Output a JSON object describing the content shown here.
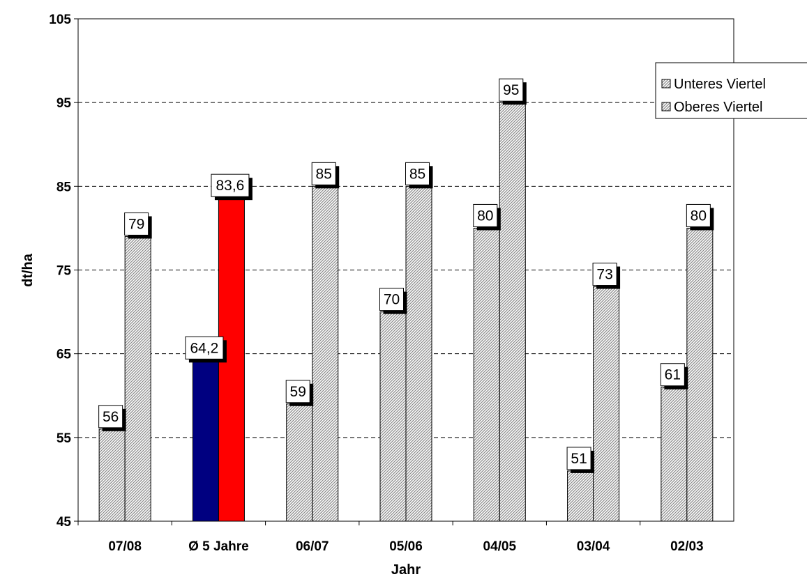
{
  "chart_data": {
    "type": "bar",
    "categories": [
      "07/08",
      "Ø 5 Jahre",
      "06/07",
      "05/06",
      "04/05",
      "03/04",
      "02/03"
    ],
    "series": [
      {
        "name": "Unteres Viertel",
        "values": [
          56,
          64.2,
          59,
          70,
          80,
          51,
          61
        ],
        "labels": [
          "56",
          "64,2",
          "59",
          "70",
          "80",
          "51",
          "61"
        ]
      },
      {
        "name": "Oberes Viertel",
        "values": [
          79,
          83.6,
          85,
          85,
          95,
          73,
          80
        ],
        "labels": [
          "79",
          "83,6",
          "85",
          "85",
          "95",
          "73",
          "80"
        ]
      }
    ],
    "highlight": {
      "category": "Ø 5 Jahre",
      "colors": [
        "#000080",
        "#ff0000"
      ]
    },
    "xlabel": "Jahr",
    "ylabel": "dt/ha",
    "ylim": [
      45,
      105
    ],
    "yticks": [
      "45",
      "55",
      "65",
      "75",
      "85",
      "95",
      "105"
    ],
    "grid": true,
    "legend_position": "top-right",
    "colors": {
      "hatch": "#8c8c8c",
      "background": "#ffffff"
    }
  }
}
